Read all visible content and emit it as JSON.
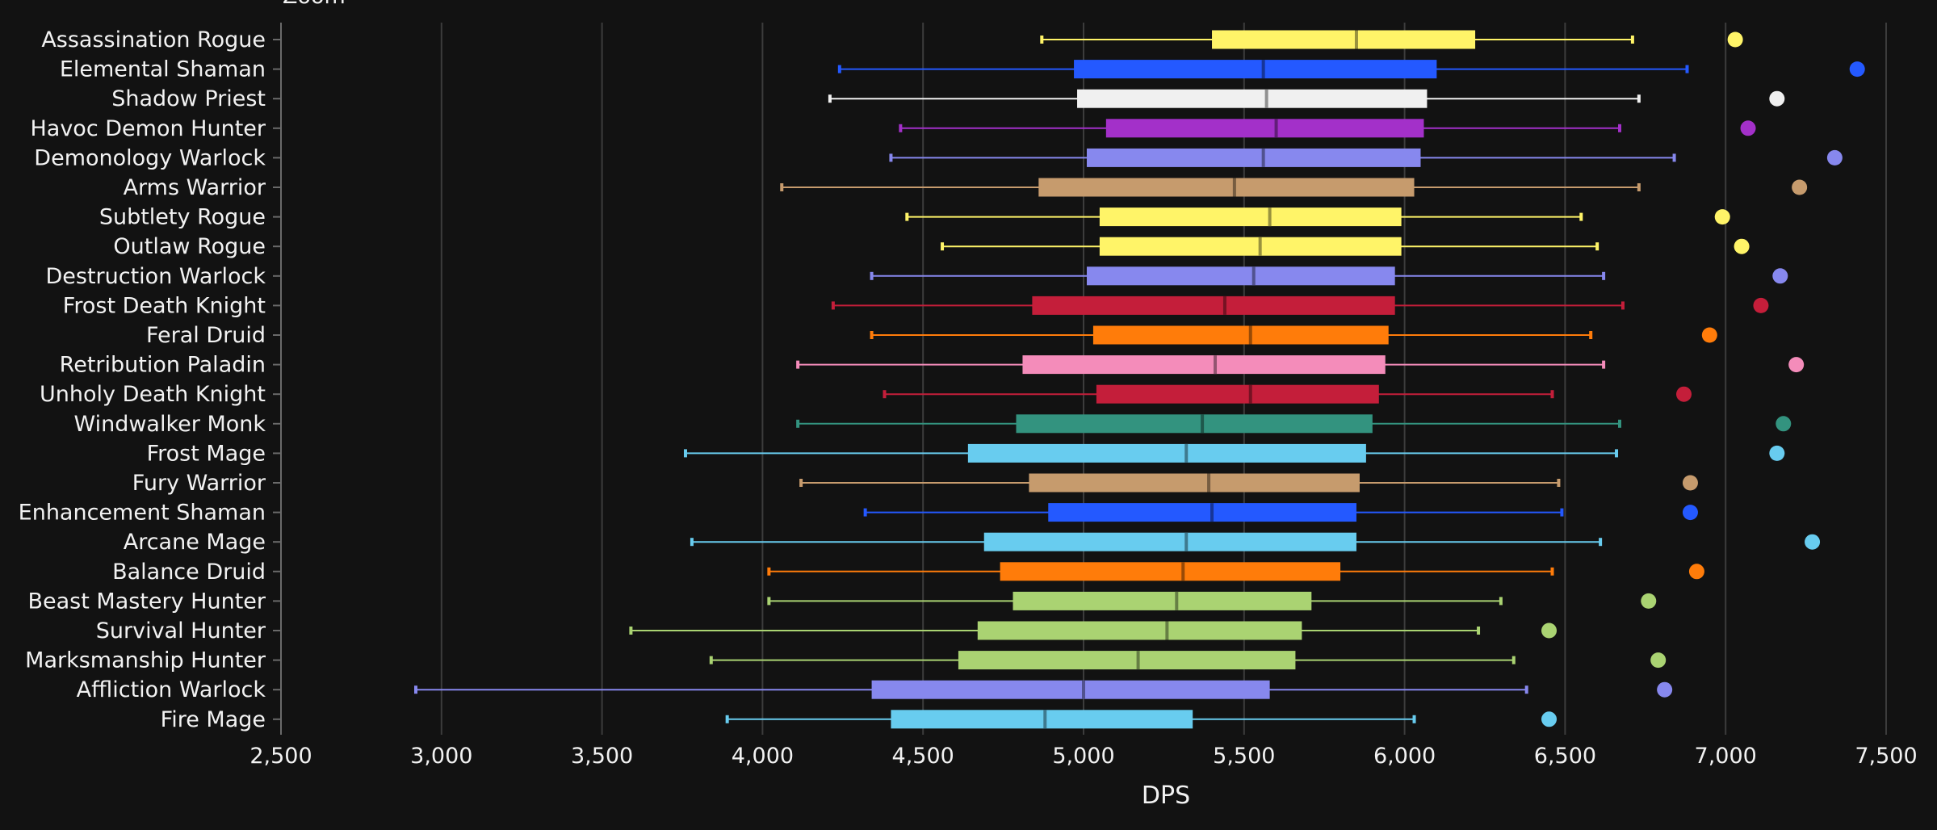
{
  "top_cutoff_text": "Zoom",
  "chart_data": {
    "type": "box",
    "xlabel": "DPS",
    "xlim": [
      2500,
      7500
    ],
    "xticks": [
      2500,
      3000,
      3500,
      4000,
      4500,
      5000,
      5500,
      6000,
      6500,
      7000,
      7500
    ],
    "xtick_labels": [
      "2,500",
      "3,000",
      "3,500",
      "4,000",
      "4,500",
      "5,000",
      "5,500",
      "6,000",
      "6,500",
      "7,000",
      "7,500"
    ],
    "grid": "vertical",
    "series": [
      {
        "name": "Assassination Rogue",
        "color": "#FFF468",
        "min": 4870,
        "q1": 5400,
        "median": 5850,
        "q3": 6220,
        "max": 6710,
        "outlier": 7030
      },
      {
        "name": "Elemental Shaman",
        "color": "#2459FF",
        "min": 4240,
        "q1": 4970,
        "median": 5560,
        "q3": 6100,
        "max": 6880,
        "outlier": 7410
      },
      {
        "name": "Shadow Priest",
        "color": "#F0F0F0",
        "min": 4210,
        "q1": 4980,
        "median": 5570,
        "q3": 6070,
        "max": 6730,
        "outlier": 7160
      },
      {
        "name": "Havoc Demon Hunter",
        "color": "#A330C9",
        "min": 4430,
        "q1": 5070,
        "median": 5600,
        "q3": 6060,
        "max": 6670,
        "outlier": 7070
      },
      {
        "name": "Demonology Warlock",
        "color": "#8788EE",
        "min": 4400,
        "q1": 5010,
        "median": 5560,
        "q3": 6050,
        "max": 6840,
        "outlier": 7340
      },
      {
        "name": "Arms Warrior",
        "color": "#C69B6D",
        "min": 4060,
        "q1": 4860,
        "median": 5470,
        "q3": 6030,
        "max": 6730,
        "outlier": 7230
      },
      {
        "name": "Subtlety Rogue",
        "color": "#FFF468",
        "min": 4450,
        "q1": 5050,
        "median": 5580,
        "q3": 5990,
        "max": 6550,
        "outlier": 6990
      },
      {
        "name": "Outlaw Rogue",
        "color": "#FFF468",
        "min": 4560,
        "q1": 5050,
        "median": 5550,
        "q3": 5990,
        "max": 6600,
        "outlier": 7050
      },
      {
        "name": "Destruction Warlock",
        "color": "#8788EE",
        "min": 4340,
        "q1": 5010,
        "median": 5530,
        "q3": 5970,
        "max": 6620,
        "outlier": 7170
      },
      {
        "name": "Frost Death Knight",
        "color": "#C41E3A",
        "min": 4220,
        "q1": 4840,
        "median": 5440,
        "q3": 5970,
        "max": 6680,
        "outlier": 7110
      },
      {
        "name": "Feral Druid",
        "color": "#FF7C0A",
        "min": 4340,
        "q1": 5030,
        "median": 5520,
        "q3": 5950,
        "max": 6580,
        "outlier": 6950
      },
      {
        "name": "Retribution Paladin",
        "color": "#F48CBA",
        "min": 4110,
        "q1": 4810,
        "median": 5410,
        "q3": 5940,
        "max": 6620,
        "outlier": 7220
      },
      {
        "name": "Unholy Death Knight",
        "color": "#C41E3A",
        "min": 4380,
        "q1": 5040,
        "median": 5520,
        "q3": 5920,
        "max": 6460,
        "outlier": 6870
      },
      {
        "name": "Windwalker Monk",
        "color": "#33937F",
        "min": 4110,
        "q1": 4790,
        "median": 5370,
        "q3": 5900,
        "max": 6670,
        "outlier": 7180
      },
      {
        "name": "Frost Mage",
        "color": "#68CCEF",
        "min": 3760,
        "q1": 4640,
        "median": 5320,
        "q3": 5880,
        "max": 6660,
        "outlier": 7160
      },
      {
        "name": "Fury Warrior",
        "color": "#C69B6D",
        "min": 4120,
        "q1": 4830,
        "median": 5390,
        "q3": 5860,
        "max": 6480,
        "outlier": 6890
      },
      {
        "name": "Enhancement Shaman",
        "color": "#2459FF",
        "min": 4320,
        "q1": 4890,
        "median": 5400,
        "q3": 5850,
        "max": 6490,
        "outlier": 6890
      },
      {
        "name": "Arcane Mage",
        "color": "#68CCEF",
        "min": 3780,
        "q1": 4690,
        "median": 5320,
        "q3": 5850,
        "max": 6610,
        "outlier": 7270
      },
      {
        "name": "Balance Druid",
        "color": "#FF7C0A",
        "min": 4020,
        "q1": 4740,
        "median": 5310,
        "q3": 5800,
        "max": 6460,
        "outlier": 6910
      },
      {
        "name": "Beast Mastery Hunter",
        "color": "#AAD372",
        "min": 4020,
        "q1": 4780,
        "median": 5290,
        "q3": 5710,
        "max": 6300,
        "outlier": 6760
      },
      {
        "name": "Survival Hunter",
        "color": "#AAD372",
        "min": 3590,
        "q1": 4670,
        "median": 5260,
        "q3": 5680,
        "max": 6230,
        "outlier": 6450
      },
      {
        "name": "Marksmanship Hunter",
        "color": "#AAD372",
        "min": 3840,
        "q1": 4610,
        "median": 5170,
        "q3": 5660,
        "max": 6340,
        "outlier": 6790
      },
      {
        "name": "Affliction Warlock",
        "color": "#8788EE",
        "min": 2920,
        "q1": 4340,
        "median": 5000,
        "q3": 5580,
        "max": 6380,
        "outlier": 6810
      },
      {
        "name": "Fire Mage",
        "color": "#68CCEF",
        "min": 3890,
        "q1": 4400,
        "median": 4880,
        "q3": 5340,
        "max": 6030,
        "outlier": 6450
      }
    ]
  }
}
